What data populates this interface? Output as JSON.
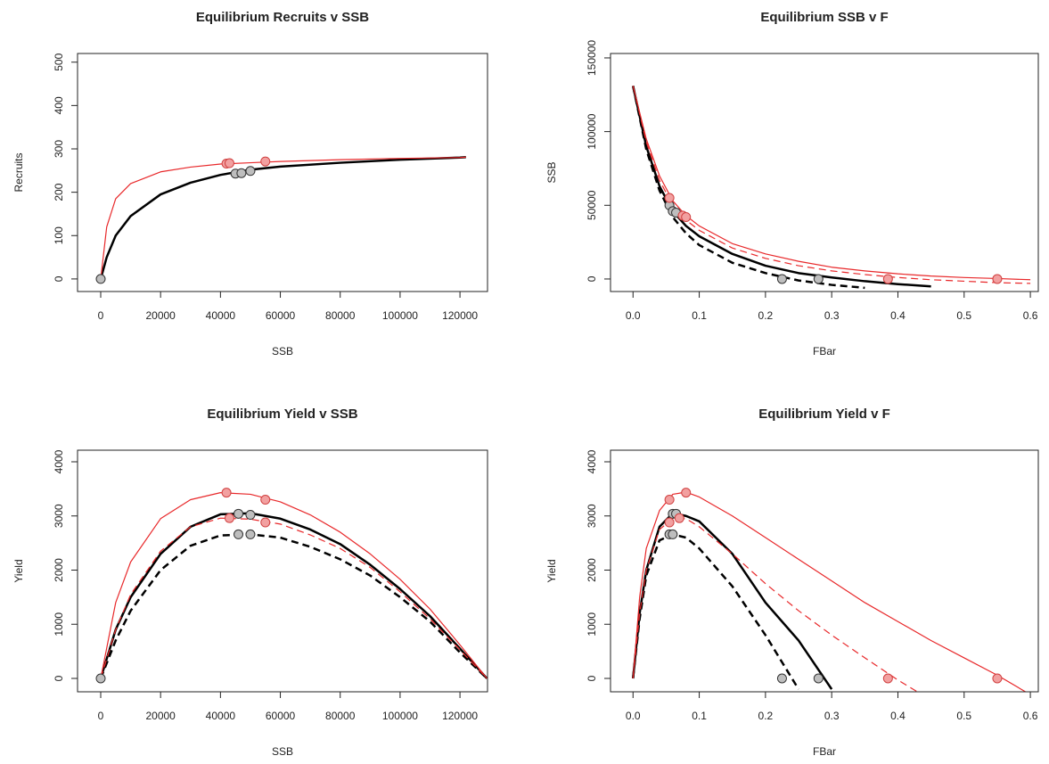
{
  "chart_data": [
    {
      "type": "line",
      "title": "Equilibrium Recruits v SSB",
      "xlabel": "SSB",
      "ylabel": "Recruits",
      "xlim": [
        -7740,
        129200
      ],
      "ylim": [
        -29,
        520
      ],
      "xticks": [
        0,
        20000,
        40000,
        60000,
        80000,
        100000,
        120000
      ],
      "yticks": [
        0,
        100,
        200,
        300,
        400,
        500
      ],
      "x": [
        0,
        2000,
        5000,
        10000,
        20000,
        30000,
        40000,
        50000,
        60000,
        80000,
        100000,
        120000,
        122000
      ],
      "series": [
        {
          "color": "#000000",
          "width": 2.5,
          "dash": false,
          "values": [
            0,
            50,
            100,
            145,
            195,
            222,
            240,
            252,
            259,
            268,
            275,
            280,
            281
          ]
        },
        {
          "color": "#e8282a",
          "width": 1.2,
          "dash": false,
          "values": [
            0,
            120,
            185,
            220,
            247,
            258,
            265,
            268,
            271,
            275,
            278,
            280,
            281
          ]
        }
      ],
      "points": [
        {
          "color": "#bebebe",
          "edge": "#333333",
          "x": [
            0,
            45000,
            47000,
            50000
          ],
          "y": [
            0,
            243,
            244,
            249
          ]
        },
        {
          "color": "#f2a0a0",
          "edge": "#d04040",
          "x": [
            42000,
            43000,
            55000
          ],
          "y": [
            266,
            267,
            271
          ]
        }
      ]
    },
    {
      "type": "line",
      "title": "Equilibrium SSB v F",
      "xlabel": "FBar",
      "ylabel": "SSB",
      "xlim": [
        -0.034,
        0.612
      ],
      "ylim": [
        -8500,
        153000
      ],
      "xticks": [
        {
          "value": 0,
          "label": "0.0"
        },
        0.1,
        0.2,
        0.3,
        0.4,
        0.5,
        0.6
      ],
      "yticks": [
        0,
        50000,
        100000,
        150000
      ],
      "x": [
        0,
        0.02,
        0.04,
        0.06,
        0.08,
        0.1,
        0.15,
        0.2,
        0.25,
        0.3,
        0.35,
        0.4,
        0.45,
        0.5,
        0.55,
        0.6
      ],
      "series": [
        {
          "color": "#000000",
          "width": 2.5,
          "dash": false,
          "values": [
            131000,
            90000,
            63000,
            46000,
            36000,
            29000,
            17000,
            9000,
            4000,
            1000,
            -1500,
            -3500,
            -5000,
            null,
            null,
            null
          ]
        },
        {
          "color": "#000000",
          "width": 2.5,
          "dash": true,
          "values": [
            131000,
            88000,
            60000,
            42000,
            31000,
            23000,
            11000,
            4000,
            -1000,
            -4000,
            -6000,
            null,
            null,
            null,
            null,
            null
          ]
        },
        {
          "color": "#e8282a",
          "width": 1.2,
          "dash": false,
          "values": [
            131000,
            95000,
            70000,
            53000,
            43000,
            36000,
            24000,
            17000,
            12000,
            8000,
            5500,
            3500,
            2000,
            1000,
            300,
            -500
          ]
        },
        {
          "color": "#e8282a",
          "width": 1.2,
          "dash": true,
          "values": [
            131000,
            93000,
            67000,
            50000,
            40000,
            33000,
            21000,
            14000,
            9000,
            5500,
            3000,
            1000,
            -500,
            -1500,
            -2500,
            -3000
          ]
        }
      ],
      "points": [
        {
          "color": "#bebebe",
          "edge": "#333333",
          "x": [
            0.055,
            0.06,
            0.065,
            0.225,
            0.28
          ],
          "y": [
            50000,
            46000,
            45000,
            0,
            0
          ]
        },
        {
          "color": "#f2a0a0",
          "edge": "#d04040",
          "x": [
            0.055,
            0.075,
            0.08,
            0.385,
            0.55
          ],
          "y": [
            55000,
            43000,
            42000,
            0,
            0
          ]
        }
      ]
    },
    {
      "type": "line",
      "title": "Equilibrium Yield v SSB",
      "xlabel": "SSB",
      "ylabel": "Yield",
      "xlim": [
        -7740,
        129200
      ],
      "ylim": [
        -247,
        4214
      ],
      "xticks": [
        0,
        20000,
        40000,
        60000,
        80000,
        100000,
        120000
      ],
      "yticks": [
        0,
        1000,
        2000,
        3000,
        4000
      ],
      "x": [
        0,
        5000,
        10000,
        20000,
        30000,
        40000,
        50000,
        60000,
        70000,
        80000,
        90000,
        100000,
        110000,
        120000,
        129000
      ],
      "series": [
        {
          "color": "#000000",
          "width": 2.5,
          "dash": false,
          "values": [
            0,
            900,
            1500,
            2300,
            2800,
            3030,
            3050,
            2950,
            2750,
            2480,
            2100,
            1650,
            1150,
            550,
            0
          ]
        },
        {
          "color": "#000000",
          "width": 2.5,
          "dash": true,
          "values": [
            0,
            700,
            1250,
            2000,
            2450,
            2640,
            2660,
            2600,
            2430,
            2200,
            1900,
            1500,
            1050,
            480,
            0
          ]
        },
        {
          "color": "#e8282a",
          "width": 1.2,
          "dash": false,
          "values": [
            0,
            1400,
            2150,
            2950,
            3300,
            3430,
            3400,
            3260,
            3020,
            2700,
            2300,
            1830,
            1280,
            620,
            0
          ]
        },
        {
          "color": "#e8282a",
          "width": 1.2,
          "dash": true,
          "values": [
            0,
            900,
            1550,
            2350,
            2800,
            2960,
            2940,
            2850,
            2650,
            2400,
            2050,
            1600,
            1100,
            530,
            0
          ]
        }
      ],
      "points": [
        {
          "color": "#bebebe",
          "edge": "#333333",
          "x": [
            0,
            46000,
            50000,
            46000,
            50000
          ],
          "y": [
            0,
            3040,
            3020,
            2660,
            2660
          ]
        },
        {
          "color": "#f2a0a0",
          "edge": "#d04040",
          "x": [
            42000,
            55000,
            43000,
            55000
          ],
          "y": [
            3430,
            3300,
            2960,
            2880
          ]
        }
      ]
    },
    {
      "type": "line",
      "title": "Equilibrium Yield v F",
      "xlabel": "FBar",
      "ylabel": "Yield",
      "xlim": [
        -0.034,
        0.612
      ],
      "ylim": [
        -247,
        4214
      ],
      "xticks": [
        {
          "value": 0,
          "label": "0.0"
        },
        0.1,
        0.2,
        0.3,
        0.4,
        0.5,
        0.6
      ],
      "yticks": [
        0,
        1000,
        2000,
        3000,
        4000
      ],
      "x": [
        0,
        0.01,
        0.02,
        0.04,
        0.06,
        0.08,
        0.1,
        0.15,
        0.2,
        0.25,
        0.3,
        0.35,
        0.4,
        0.45,
        0.5,
        0.55,
        0.6
      ],
      "series": [
        {
          "color": "#000000",
          "width": 2.5,
          "dash": false,
          "values": [
            0,
            1200,
            2000,
            2800,
            3050,
            3000,
            2900,
            2300,
            1400,
            700,
            -200,
            null,
            null,
            null,
            null,
            null,
            null
          ]
        },
        {
          "color": "#000000",
          "width": 2.5,
          "dash": true,
          "values": [
            0,
            1100,
            1900,
            2550,
            2660,
            2600,
            2400,
            1700,
            800,
            -200,
            null,
            null,
            null,
            null,
            null,
            null,
            null
          ]
        },
        {
          "color": "#e8282a",
          "width": 1.2,
          "dash": false,
          "values": [
            0,
            1500,
            2400,
            3100,
            3400,
            3440,
            3350,
            3000,
            2600,
            2200,
            1800,
            1400,
            1050,
            700,
            380,
            60,
            -300
          ]
        },
        {
          "color": "#e8282a",
          "width": 1.2,
          "dash": true,
          "values": [
            0,
            1200,
            2000,
            2750,
            2950,
            2950,
            2800,
            2300,
            1750,
            1250,
            800,
            380,
            -30,
            -400,
            null,
            null,
            null
          ]
        }
      ],
      "points": [
        {
          "color": "#bebebe",
          "edge": "#333333",
          "x": [
            0.055,
            0.06,
            0.06,
            0.065,
            0.225,
            0.28
          ],
          "y": [
            2660,
            2660,
            3040,
            3040,
            0,
            0
          ]
        },
        {
          "color": "#f2a0a0",
          "edge": "#d04040",
          "x": [
            0.055,
            0.055,
            0.07,
            0.08,
            0.385,
            0.55
          ],
          "y": [
            3300,
            2880,
            2960,
            3430,
            0,
            0
          ]
        }
      ]
    }
  ]
}
